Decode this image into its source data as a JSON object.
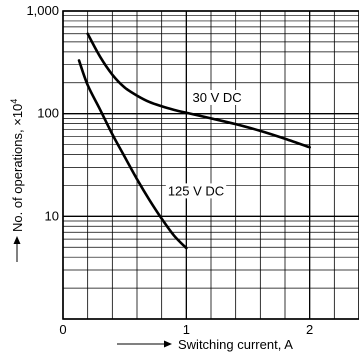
{
  "chart_data": {
    "type": "line",
    "title": "",
    "xlabel": "Switching current, A",
    "ylabel": "No. of operations, ×10",
    "ylabel_exponent": "4",
    "xlim": [
      0,
      2.4
    ],
    "ylim": [
      1,
      1000
    ],
    "y_scale": "log",
    "grid": true,
    "x_ticks": [
      {
        "value": 0,
        "label": "0"
      },
      {
        "value": 1,
        "label": "1"
      },
      {
        "value": 2,
        "label": "2"
      }
    ],
    "y_ticks": [
      {
        "value": 10,
        "label": "10"
      },
      {
        "value": 100,
        "label": "100"
      },
      {
        "value": 1000,
        "label": "1,000"
      }
    ],
    "series": [
      {
        "name": "30 V DC",
        "x": [
          0.2,
          0.3,
          0.4,
          0.5,
          0.6,
          0.7,
          0.8,
          0.9,
          1.0,
          1.2,
          1.4,
          1.6,
          1.8,
          2.0
        ],
        "y": [
          600,
          360,
          240,
          180,
          150,
          130,
          118,
          109,
          102,
          90,
          79,
          68,
          57,
          47
        ]
      },
      {
        "name": "125 V DC",
        "x": [
          0.13,
          0.2,
          0.3,
          0.4,
          0.5,
          0.6,
          0.7,
          0.8,
          0.9,
          1.0
        ],
        "y": [
          330,
          190,
          110,
          63,
          38,
          23,
          14.5,
          9.5,
          6.5,
          4.9
        ]
      }
    ],
    "annotations": [
      {
        "text": "30 V DC",
        "x": 1.05,
        "y": 130
      },
      {
        "text": "125 V DC",
        "x": 0.85,
        "y": 16
      }
    ]
  }
}
